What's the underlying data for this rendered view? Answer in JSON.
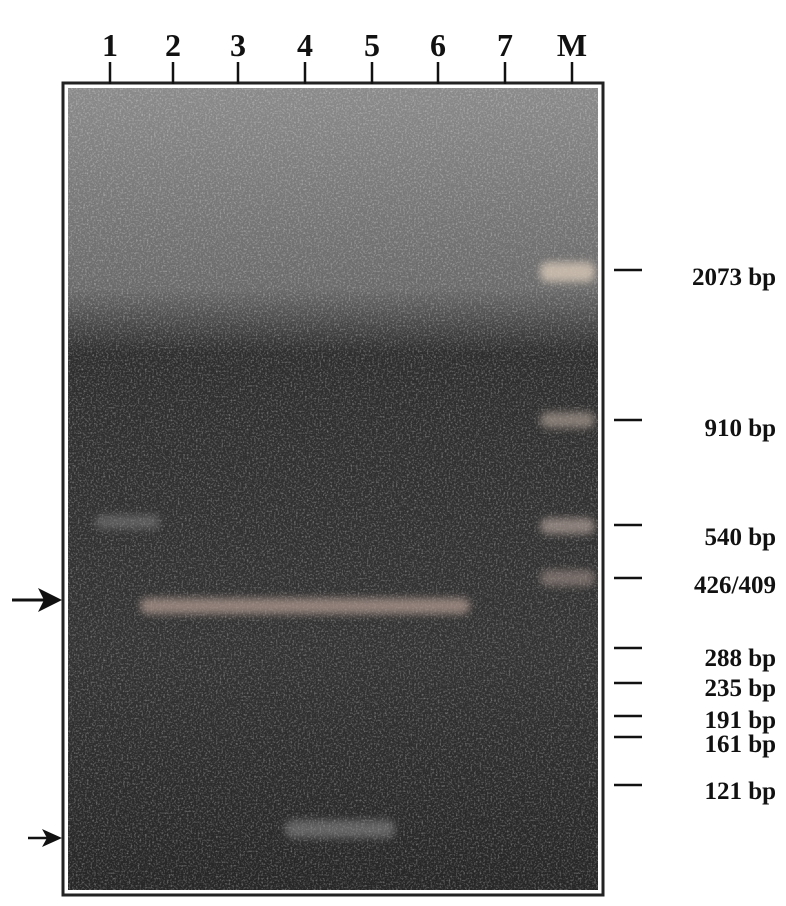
{
  "lanes": [
    "1",
    "2",
    "3",
    "4",
    "5",
    "6",
    "7",
    "M"
  ],
  "markers": [
    "2073 bp",
    "910 bp",
    "540 bp",
    "426/409",
    "288 bp",
    "235 bp",
    "191 bp",
    "161 bp",
    "121 bp"
  ]
}
